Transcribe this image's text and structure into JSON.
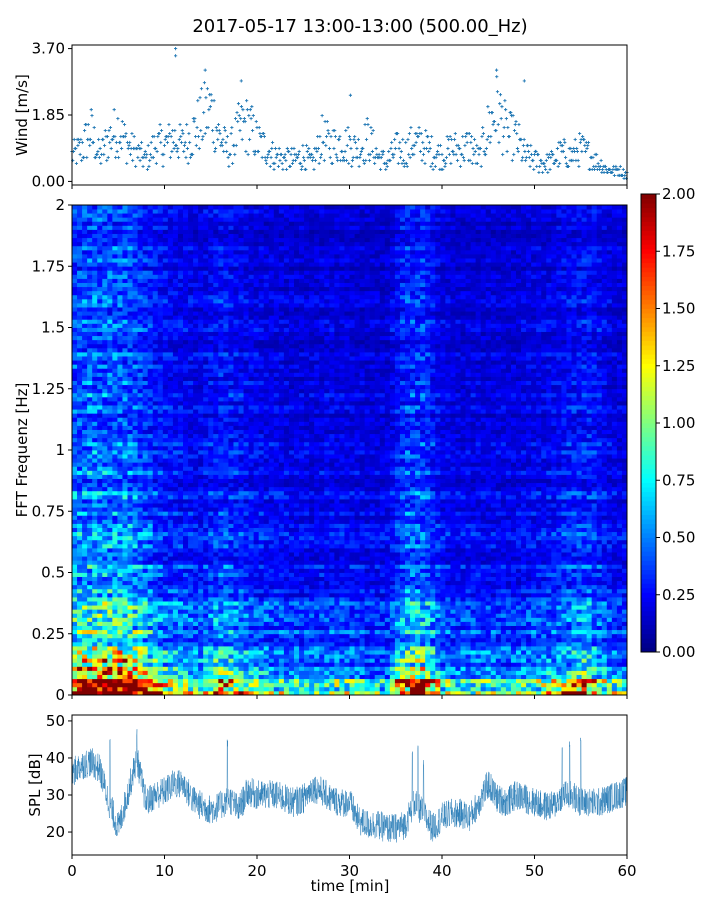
{
  "chart_data": [
    {
      "type": "scatter",
      "title": "2017-05-17 13:00-13:00 (500.00_Hz)",
      "ylabel": "Wind [m/s]",
      "xlim": [
        0,
        60
      ],
      "ylim": [
        -0.1,
        3.8
      ],
      "yticks": [
        "0.00",
        "1.85",
        "3.70"
      ],
      "ytick_values": [
        0,
        1.85,
        3.7
      ],
      "xticks": [
        0,
        10,
        20,
        30,
        40,
        50,
        60
      ],
      "marker": "+",
      "color": "#1f77b4",
      "wind_trend_minutes": [
        0,
        1,
        2,
        3,
        4,
        5,
        6,
        7,
        8,
        9,
        10,
        11,
        12,
        13,
        14,
        15,
        16,
        17,
        18,
        19,
        20,
        21,
        22,
        23,
        24,
        25,
        26,
        27,
        28,
        29,
        30,
        31,
        32,
        33,
        34,
        35,
        36,
        37,
        38,
        39,
        40,
        41,
        42,
        43,
        44,
        45,
        46,
        47,
        48,
        49,
        50,
        51,
        52,
        53,
        54,
        55,
        56,
        57,
        58,
        59,
        60
      ],
      "wind_trend": [
        0.7,
        0.9,
        1.4,
        0.7,
        1.2,
        1.5,
        1.0,
        0.8,
        0.6,
        1.0,
        1.0,
        1.2,
        1.0,
        1.3,
        1.7,
        2.0,
        1.2,
        0.8,
        1.4,
        1.6,
        1.1,
        0.9,
        0.7,
        0.6,
        0.6,
        0.7,
        0.5,
        1.2,
        1.0,
        1.1,
        1.0,
        0.9,
        1.2,
        0.7,
        0.5,
        0.9,
        0.8,
        1.1,
        1.0,
        0.8,
        0.7,
        0.9,
        0.9,
        1.0,
        0.6,
        1.5,
        2.0,
        1.3,
        1.2,
        0.7,
        0.6,
        0.5,
        0.6,
        0.8,
        0.7,
        0.9,
        0.7,
        0.5,
        0.3,
        0.3,
        0.2
      ],
      "peaks": [
        {
          "x": 11.2,
          "y": 3.7
        },
        {
          "x": 11.2,
          "y": 3.5
        },
        {
          "x": 14.4,
          "y": 3.1
        },
        {
          "x": 18.3,
          "y": 2.8
        },
        {
          "x": 45.9,
          "y": 3.1
        },
        {
          "x": 48.9,
          "y": 2.8
        },
        {
          "x": 30.1,
          "y": 2.4
        }
      ]
    },
    {
      "type": "heatmap",
      "ylabel": "FFT Frequenz [Hz]",
      "xlim": [
        0,
        60
      ],
      "ylim": [
        0,
        2
      ],
      "yticks": [
        "0",
        "0.25",
        "0.5",
        "0.75",
        "1",
        "1.25",
        "1.5",
        "1.75",
        "2"
      ],
      "ytick_values": [
        0,
        0.25,
        0.5,
        0.75,
        1,
        1.25,
        1.5,
        1.75,
        2
      ],
      "colormap": "jet",
      "clim": [
        0,
        2
      ],
      "colorbar_ticks": [
        "0.00",
        "0.25",
        "0.50",
        "0.75",
        "1.00",
        "1.25",
        "1.50",
        "1.75",
        "2.00"
      ],
      "time_activity_minutes": [
        0,
        2,
        4,
        6,
        8,
        10,
        12,
        14,
        16,
        18,
        20,
        22,
        24,
        26,
        28,
        30,
        32,
        34,
        36,
        38,
        40,
        42,
        44,
        46,
        48,
        50,
        52,
        54,
        56,
        58,
        60
      ],
      "time_activity": [
        1.4,
        1.5,
        1.5,
        1.5,
        1.2,
        1.0,
        0.9,
        0.85,
        1.1,
        0.95,
        0.85,
        0.8,
        0.75,
        0.75,
        0.8,
        0.75,
        0.7,
        0.7,
        1.2,
        1.25,
        0.8,
        0.75,
        0.75,
        0.75,
        0.75,
        0.8,
        0.85,
        1.0,
        1.05,
        0.8,
        0.7
      ],
      "freq_profile_hz": [
        0,
        0.05,
        0.1,
        0.2,
        0.3,
        0.5,
        0.75,
        1.0,
        1.5,
        2.0
      ],
      "freq_profile": [
        1.5,
        1.2,
        0.8,
        0.55,
        0.5,
        0.4,
        0.33,
        0.28,
        0.25,
        0.22
      ]
    },
    {
      "type": "line",
      "ylabel": "SPL [dB]",
      "xlabel": "time [min]",
      "xlim": [
        0,
        60
      ],
      "ylim": [
        13.8,
        51.6
      ],
      "yticks": [
        "20",
        "30",
        "40",
        "50"
      ],
      "ytick_values": [
        20,
        30,
        40,
        50
      ],
      "xticks": [
        "0",
        "10",
        "20",
        "30",
        "40",
        "50",
        "60"
      ],
      "xtick_values": [
        0,
        10,
        20,
        30,
        40,
        50,
        60
      ],
      "color": "#1f77b4",
      "spl_minutes": [
        0,
        1,
        2,
        3,
        4,
        5,
        6,
        7,
        8,
        9,
        10,
        11,
        12,
        13,
        14,
        15,
        16,
        17,
        18,
        19,
        20,
        21,
        22,
        23,
        24,
        25,
        26,
        27,
        28,
        29,
        30,
        31,
        32,
        33,
        34,
        35,
        36,
        37,
        38,
        39,
        40,
        41,
        42,
        43,
        44,
        45,
        46,
        47,
        48,
        49,
        50,
        51,
        52,
        53,
        54,
        55,
        56,
        57,
        58,
        59,
        60
      ],
      "spl_mean": [
        36,
        38,
        39,
        37,
        28,
        21,
        30,
        40,
        28,
        30,
        31,
        33,
        33,
        29,
        27,
        26,
        27,
        29,
        26,
        31,
        30,
        30,
        30,
        29,
        28,
        29,
        32,
        31,
        29,
        28,
        28,
        23,
        22,
        22,
        21,
        21,
        22,
        28,
        25,
        21,
        24,
        25,
        25,
        24,
        28,
        33,
        29,
        28,
        30,
        29,
        28,
        27,
        27,
        30,
        30,
        28,
        28,
        28,
        29,
        30,
        31
      ],
      "spikes": [
        {
          "x": 7.0,
          "y": 48
        },
        {
          "x": 16.8,
          "y": 45
        },
        {
          "x": 36.8,
          "y": 43
        },
        {
          "x": 37.4,
          "y": 44
        },
        {
          "x": 38.0,
          "y": 40
        },
        {
          "x": 53.0,
          "y": 44
        },
        {
          "x": 53.8,
          "y": 45
        },
        {
          "x": 55.0,
          "y": 46
        },
        {
          "x": 4.1,
          "y": 46
        }
      ]
    }
  ]
}
